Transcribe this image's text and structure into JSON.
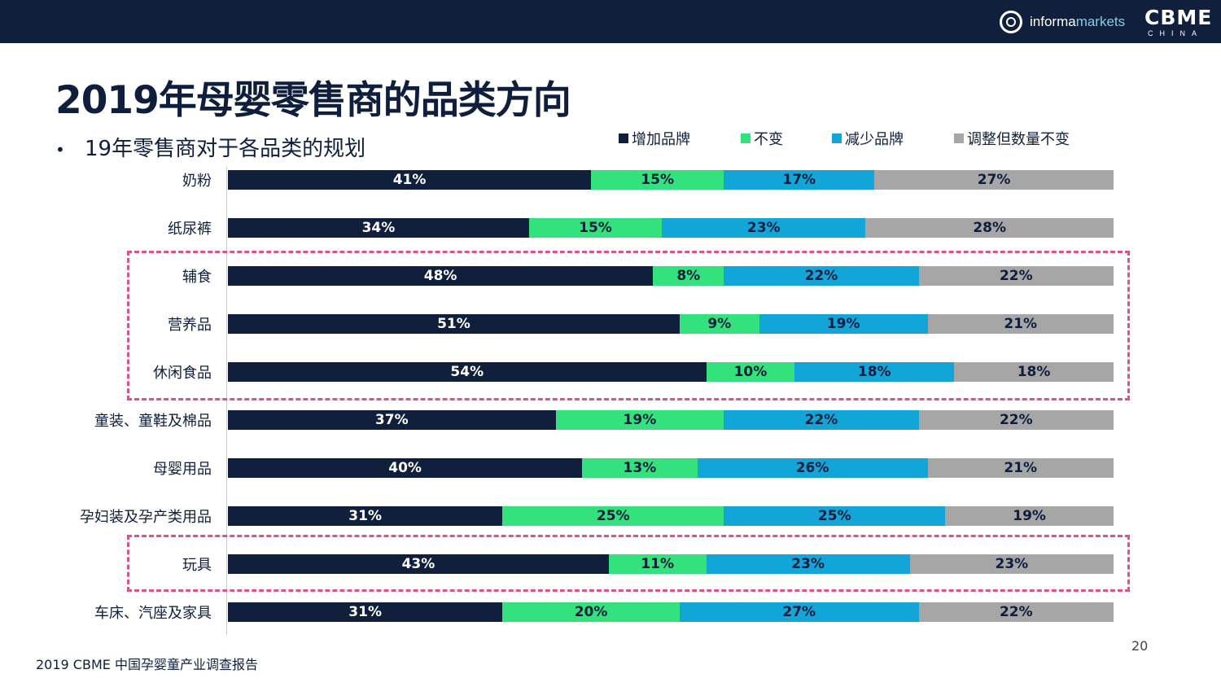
{
  "header": {
    "brand_informa_bold": "informa",
    "brand_informa_thin": "markets",
    "brand_cbme": "CBME",
    "brand_cbme_sub": "CHINA"
  },
  "page_title": "2019年母婴零售商的品类方向",
  "bullet_text": "19年零售商对于各品类的规划",
  "footer": "2019 CBME 中国孕婴童产业调查报告",
  "page_number": "20",
  "colors": {
    "navy": "#0f1f3c",
    "green": "#33e27c",
    "blue": "#12a5d8",
    "gray": "#a6a6a6",
    "highlight": "#e0538a"
  },
  "chart_data": {
    "type": "bar",
    "orientation": "horizontal",
    "stacked": "100%",
    "legend_position": "top",
    "grid": false,
    "categories": [
      "奶粉",
      "纸尿裤",
      "辅食",
      "营养品",
      "休闲食品",
      "童装、童鞋及棉品",
      "母婴用品",
      "孕妇装及孕产类用品",
      "玩具",
      "车床、汽座及家具"
    ],
    "series": [
      {
        "name": "增加品牌",
        "color": "#0f1f3c",
        "values": [
          41,
          34,
          48,
          51,
          54,
          37,
          40,
          31,
          43,
          31
        ]
      },
      {
        "name": "不变",
        "color": "#33e27c",
        "values": [
          15,
          15,
          8,
          9,
          10,
          19,
          13,
          25,
          11,
          20
        ]
      },
      {
        "name": "减少品牌",
        "color": "#12a5d8",
        "values": [
          17,
          23,
          22,
          19,
          18,
          22,
          26,
          25,
          23,
          27
        ]
      },
      {
        "name": "调整但数量不变",
        "color": "#a6a6a6",
        "values": [
          27,
          28,
          22,
          21,
          18,
          22,
          21,
          19,
          23,
          22
        ]
      }
    ],
    "value_suffix": "%",
    "highlighted_groups": [
      [
        "辅食",
        "营养品",
        "休闲食品"
      ],
      [
        "玩具"
      ]
    ]
  }
}
